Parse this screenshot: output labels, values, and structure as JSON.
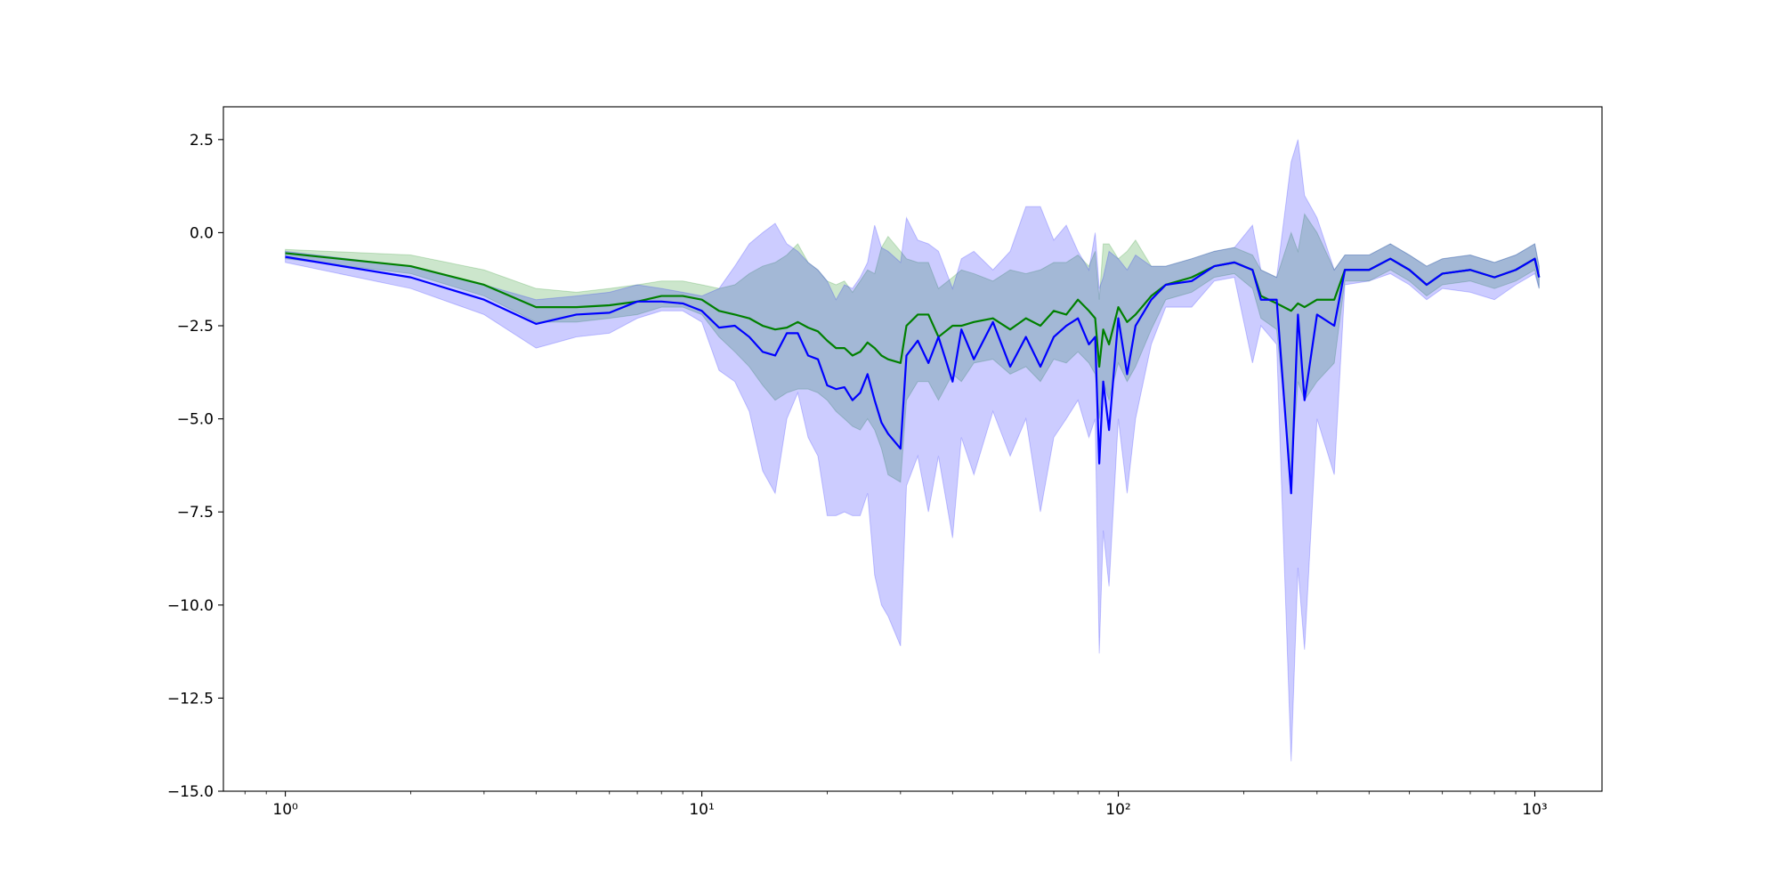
{
  "chart_data": {
    "type": "line_band",
    "xscale": "log",
    "xlim": [
      0.71,
      1450
    ],
    "ylim": [
      -15,
      3.38
    ],
    "xticks": [
      {
        "value": 1,
        "label": "10⁰"
      },
      {
        "value": 10,
        "label": "10¹"
      },
      {
        "value": 100,
        "label": "10²"
      },
      {
        "value": 1000,
        "label": "10³"
      }
    ],
    "xminorticks": [
      0.8,
      0.9,
      2,
      3,
      4,
      5,
      6,
      7,
      8,
      9,
      20,
      30,
      40,
      50,
      60,
      70,
      80,
      90,
      200,
      300,
      400,
      500,
      600,
      700,
      800,
      900
    ],
    "yticks": [
      {
        "value": -15,
        "label": "−15.0"
      },
      {
        "value": -12.5,
        "label": "−12.5"
      },
      {
        "value": -10,
        "label": "−10.0"
      },
      {
        "value": -7.5,
        "label": "−7.5"
      },
      {
        "value": -5,
        "label": "−5.0"
      },
      {
        "value": -2.5,
        "label": "−2.5"
      },
      {
        "value": 0,
        "label": "0.0"
      },
      2.5
    ],
    "fill_alpha": 0.2,
    "x": [
      1,
      2,
      3,
      4,
      5,
      6,
      7,
      8,
      9,
      10,
      11,
      12,
      13,
      14,
      15,
      16,
      17,
      18,
      19,
      20,
      21,
      22,
      23,
      24,
      25,
      26,
      27,
      28,
      30,
      31,
      33,
      35,
      37,
      40,
      42,
      45,
      50,
      55,
      60,
      65,
      70,
      75,
      80,
      85,
      88,
      90,
      92,
      95,
      100,
      105,
      110,
      120,
      130,
      150,
      170,
      190,
      210,
      220,
      240,
      260,
      270,
      280,
      300,
      330,
      350,
      400,
      450,
      500,
      550,
      600,
      700,
      800,
      900,
      1000,
      1024
    ],
    "series": [
      {
        "color": "green",
        "values": [
          -0.55,
          -0.9,
          -1.4,
          -2.0,
          -2.0,
          -1.95,
          -1.85,
          -1.7,
          -1.7,
          -1.8,
          -2.1,
          -2.2,
          -2.3,
          -2.5,
          -2.6,
          -2.55,
          -2.4,
          -2.55,
          -2.65,
          -2.9,
          -3.1,
          -3.1,
          -3.3,
          -3.2,
          -2.95,
          -3.1,
          -3.3,
          -3.4,
          -3.5,
          -2.5,
          -2.2,
          -2.2,
          -2.8,
          -2.5,
          -2.5,
          -2.4,
          -2.3,
          -2.6,
          -2.3,
          -2.5,
          -2.1,
          -2.2,
          -1.8,
          -2.1,
          -2.3,
          -3.6,
          -2.6,
          -3.0,
          -2.0,
          -2.4,
          -2.2,
          -1.7,
          -1.4,
          -1.2,
          -0.9,
          -0.8,
          -1.0,
          -1.7,
          -1.9,
          -2.1,
          -1.9,
          -2.0,
          -1.8,
          -1.8,
          -1.0,
          -1.0,
          -0.7,
          -1.0,
          -1.4,
          -1.1,
          -1.0,
          -1.2,
          -1.0,
          -0.7,
          -1.2
        ],
        "lower": [
          -0.7,
          -1.1,
          -1.7,
          -2.4,
          -2.4,
          -2.3,
          -2.2,
          -2.0,
          -2.0,
          -2.2,
          -2.8,
          -3.2,
          -3.6,
          -4.1,
          -4.5,
          -4.3,
          -4.2,
          -4.2,
          -4.3,
          -4.5,
          -4.8,
          -5.0,
          -5.2,
          -5.3,
          -5.0,
          -5.3,
          -5.8,
          -6.5,
          -6.7,
          -4.5,
          -4.0,
          -4.0,
          -4.5,
          -3.8,
          -4.0,
          -3.5,
          -3.4,
          -3.8,
          -3.6,
          -4.0,
          -3.4,
          -3.5,
          -3.2,
          -3.5,
          -3.8,
          -5.0,
          -4.0,
          -4.5,
          -3.5,
          -4.0,
          -3.6,
          -2.6,
          -1.8,
          -1.6,
          -1.2,
          -1.1,
          -1.5,
          -2.3,
          -2.6,
          -6.5,
          -4.0,
          -4.5,
          -4.0,
          -3.5,
          -1.3,
          -1.3,
          -1.0,
          -1.3,
          -1.7,
          -1.4,
          -1.3,
          -1.5,
          -1.3,
          -1.0,
          -1.5
        ],
        "upper": [
          -0.45,
          -0.6,
          -1.0,
          -1.5,
          -1.6,
          -1.5,
          -1.4,
          -1.3,
          -1.3,
          -1.4,
          -1.5,
          -1.4,
          -1.1,
          -0.9,
          -0.8,
          -0.6,
          -0.3,
          -0.8,
          -1.0,
          -1.3,
          -1.4,
          -1.3,
          -1.6,
          -1.3,
          -1.0,
          -1.1,
          -0.4,
          -0.1,
          -0.5,
          -0.7,
          -0.8,
          -0.8,
          -1.5,
          -1.2,
          -1.0,
          -1.1,
          -1.3,
          -1.0,
          -1.1,
          -1.0,
          -0.8,
          -0.8,
          -0.6,
          -0.9,
          -0.5,
          -1.8,
          -0.3,
          -0.3,
          -0.7,
          -0.5,
          -0.2,
          -0.9,
          -0.9,
          -0.7,
          -0.5,
          -0.4,
          -0.6,
          -1.0,
          -1.2,
          0.0,
          -0.5,
          0.5,
          0.0,
          -1.0,
          -0.6,
          -0.6,
          -0.3,
          -0.6,
          -0.9,
          -0.7,
          -0.6,
          -0.8,
          -0.6,
          -0.3,
          -0.9
        ]
      },
      {
        "color": "blue",
        "values": [
          -0.65,
          -1.2,
          -1.8,
          -2.45,
          -2.2,
          -2.15,
          -1.85,
          -1.85,
          -1.9,
          -2.1,
          -2.55,
          -2.5,
          -2.8,
          -3.2,
          -3.3,
          -2.7,
          -2.7,
          -3.3,
          -3.4,
          -4.1,
          -4.2,
          -4.15,
          -4.5,
          -4.3,
          -3.8,
          -4.5,
          -5.1,
          -5.4,
          -5.8,
          -3.3,
          -2.9,
          -3.5,
          -2.8,
          -4.0,
          -2.6,
          -3.4,
          -2.4,
          -3.6,
          -2.8,
          -3.6,
          -2.8,
          -2.5,
          -2.3,
          -3.0,
          -2.8,
          -6.2,
          -4.0,
          -5.3,
          -2.3,
          -3.8,
          -2.5,
          -1.8,
          -1.4,
          -1.3,
          -0.9,
          -0.8,
          -1.0,
          -1.8,
          -1.8,
          -7.0,
          -2.2,
          -4.5,
          -2.2,
          -2.5,
          -1.0,
          -1.0,
          -0.7,
          -1.0,
          -1.4,
          -1.1,
          -1.0,
          -1.2,
          -1.0,
          -0.7,
          -1.2
        ],
        "lower": [
          -0.8,
          -1.5,
          -2.2,
          -3.1,
          -2.8,
          -2.7,
          -2.3,
          -2.1,
          -2.1,
          -2.4,
          -3.7,
          -4.0,
          -4.8,
          -6.4,
          -7.0,
          -5.0,
          -4.3,
          -5.5,
          -6.0,
          -7.6,
          -7.6,
          -7.5,
          -7.6,
          -7.6,
          -7.0,
          -9.2,
          -10.0,
          -10.3,
          -11.1,
          -6.8,
          -6.0,
          -7.5,
          -6.0,
          -8.2,
          -5.5,
          -6.5,
          -4.8,
          -6.0,
          -5.0,
          -7.5,
          -5.5,
          -5.0,
          -4.5,
          -5.5,
          -5.0,
          -11.3,
          -8.0,
          -9.5,
          -5.0,
          -7.0,
          -5.0,
          -3.0,
          -2.0,
          -2.0,
          -1.3,
          -1.2,
          -3.5,
          -2.5,
          -3.0,
          -14.2,
          -9.0,
          -11.2,
          -5.0,
          -6.5,
          -1.4,
          -1.3,
          -1.1,
          -1.4,
          -1.8,
          -1.5,
          -1.6,
          -1.8,
          -1.4,
          -1.1,
          -1.5
        ],
        "upper": [
          -0.5,
          -0.9,
          -1.4,
          -1.8,
          -1.7,
          -1.6,
          -1.4,
          -1.5,
          -1.6,
          -1.7,
          -1.5,
          -0.9,
          -0.3,
          0.0,
          0.25,
          -0.3,
          -0.5,
          -0.8,
          -1.0,
          -1.3,
          -1.8,
          -1.4,
          -1.5,
          -1.2,
          -0.8,
          0.2,
          -0.4,
          -0.5,
          -0.8,
          0.4,
          -0.2,
          -0.3,
          -0.5,
          -1.5,
          -0.7,
          -0.5,
          -1.0,
          -0.5,
          0.7,
          0.7,
          -0.2,
          0.2,
          -0.5,
          -1.0,
          0.0,
          -1.5,
          -1.2,
          -0.5,
          -0.7,
          -1.0,
          -0.6,
          -0.9,
          -0.9,
          -0.7,
          -0.5,
          -0.4,
          0.2,
          -1.0,
          -1.2,
          1.9,
          2.5,
          1.0,
          0.4,
          -1.0,
          -0.6,
          -0.6,
          -0.3,
          -0.6,
          -0.9,
          -0.7,
          -0.6,
          -0.8,
          -0.6,
          -0.3,
          -0.9
        ]
      }
    ]
  }
}
